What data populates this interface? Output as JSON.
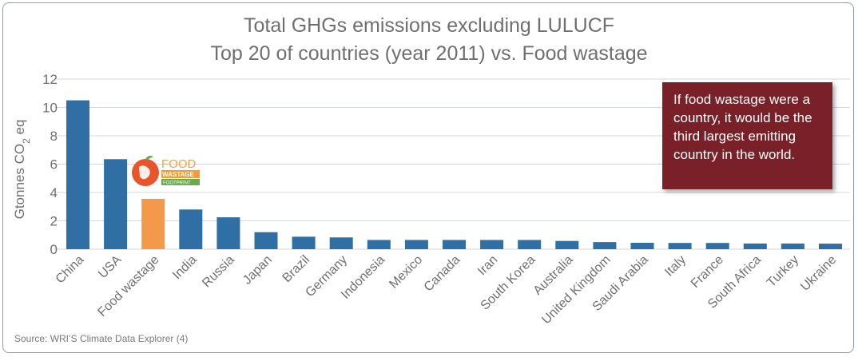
{
  "chart_data": {
    "type": "bar",
    "title_lines": [
      "Total GHGs emissions excluding LULUCF",
      "Top 20 of countries (year 2011) vs. Food wastage"
    ],
    "ylabel": "Gtonnes CO",
    "ylabel_sub": "2",
    "ylabel_suffix": " eq",
    "ylim": [
      0,
      12
    ],
    "yticks": [
      "0",
      "2",
      "4",
      "6",
      "8",
      "10",
      "12"
    ],
    "ytick_values": [
      0,
      2,
      4,
      6,
      8,
      10,
      12
    ],
    "grid": true,
    "categories": [
      "China",
      "USA",
      "Food wastage",
      "India",
      "Russia",
      "Japan",
      "Brazil",
      "Germany",
      "Indonesia",
      "Mexico",
      "Canada",
      "Iran",
      "South Korea",
      "Australia",
      "United Kingdom",
      "Saudi Arabia",
      "Italy",
      "France",
      "South Africa",
      "Turkey",
      "Ukraine"
    ],
    "values": [
      10.5,
      6.35,
      3.55,
      2.8,
      2.25,
      1.2,
      0.88,
      0.83,
      0.65,
      0.65,
      0.65,
      0.65,
      0.65,
      0.58,
      0.5,
      0.45,
      0.44,
      0.44,
      0.4,
      0.4,
      0.39
    ],
    "highlight_category": "Food wastage",
    "colors": {
      "bar": "#2f6fa3",
      "highlight": "#f29a4a",
      "grid": "#d3d8de",
      "text": "#6f6f6f"
    }
  },
  "callout": {
    "text": "If food wastage were a country, it would be the third largest emitting country in the world.",
    "color": "#7a2029"
  },
  "logo": {
    "line1": "FOOD",
    "line2": "WASTAGE",
    "line3": "FOOTPRINT"
  },
  "source": "Source: WRI’S Climate Data Explorer (4)"
}
